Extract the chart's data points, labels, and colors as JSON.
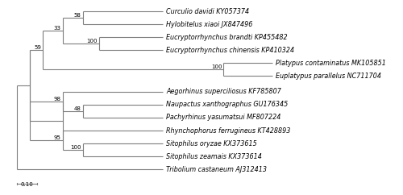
{
  "taxa": [
    "Curculio davidi KY057374",
    "Hylobitelus xiaoi JX847496",
    "Eucryptorrhynchus brandti KP455482",
    "Eucryptorrhynchus chinensis KP410324",
    "Platypus contaminatus MK105851",
    "Euplatypus parallelus NC711704",
    "Aegorhinus superciliosus KF785807",
    "Naupactus xanthographus GU176345",
    "Pachyrhinus yasumatsui MF807224",
    "Rhynchophorus ferrugineus KT428893",
    "Sitophilus oryzae KX373615",
    "Sitophilus zeamais KX373614",
    "Tribolium castaneum AJ312413"
  ],
  "background_color": "#ffffff",
  "line_color": "#7f7f7f",
  "text_color": "#000000",
  "bootstrap_color": "#000000",
  "font_size": 5.8,
  "bootstrap_font_size": 5.0,
  "scale_bar_label": "0.10"
}
